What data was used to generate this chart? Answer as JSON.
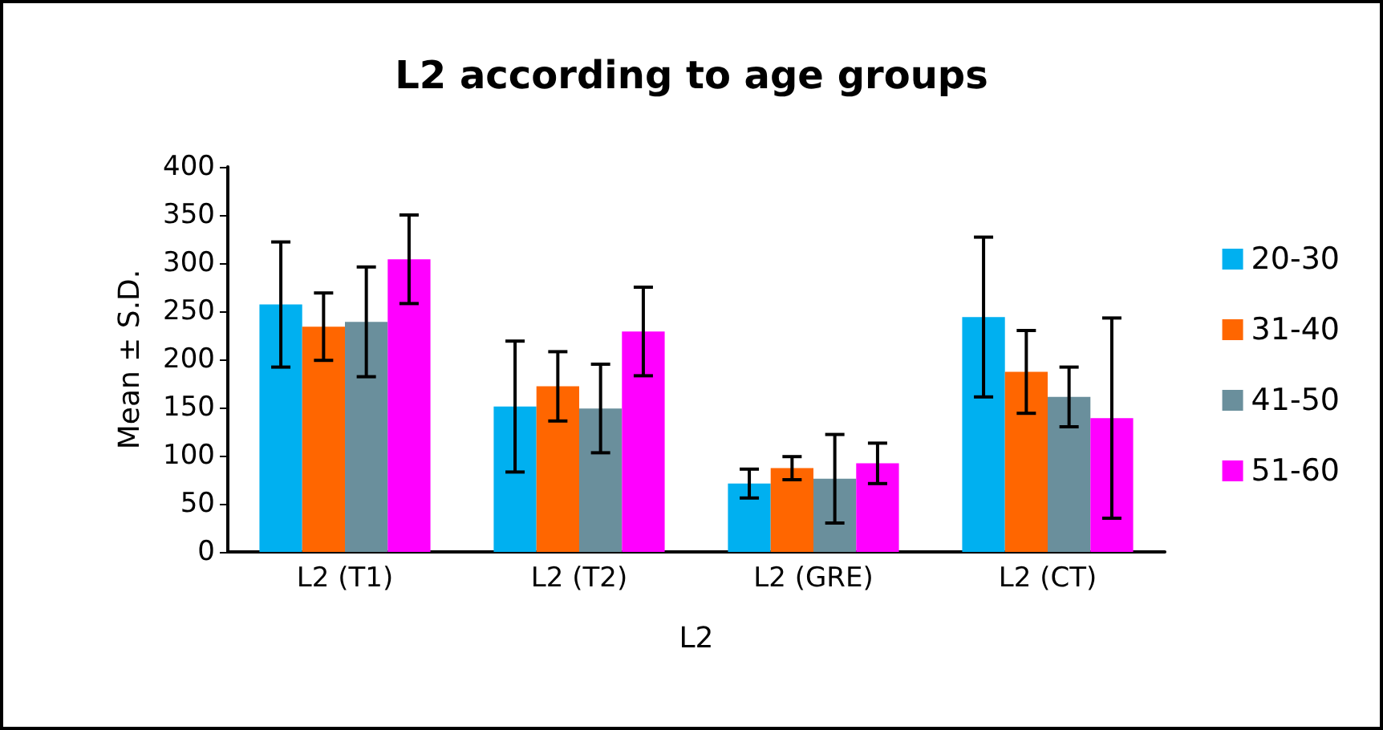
{
  "chart_data": {
    "type": "bar",
    "title": "L2 according to age groups",
    "xlabel": "L2",
    "ylabel": "Mean ± S.D.",
    "categories": [
      "L2 (T1)",
      "L2 (T2)",
      "L2 (GRE)",
      "L2 (CT)"
    ],
    "series": [
      {
        "name": "20-30",
        "color": "#00b0f0",
        "values": [
          257,
          151,
          71,
          244
        ],
        "errors": [
          65,
          68,
          15,
          83
        ]
      },
      {
        "name": "31-40",
        "color": "#ff6600",
        "values": [
          234,
          172,
          87,
          187
        ],
        "errors": [
          35,
          36,
          12,
          43
        ]
      },
      {
        "name": "41-50",
        "color": "#6a8f9c",
        "values": [
          239,
          149,
          76,
          161
        ],
        "errors": [
          57,
          46,
          46,
          31
        ]
      },
      {
        "name": "51-60",
        "color": "#ff00ff",
        "values": [
          304,
          229,
          92,
          139
        ],
        "errors": [
          46,
          46,
          21,
          104
        ]
      }
    ],
    "ylim": [
      0,
      400
    ],
    "yticks": [
      0,
      50,
      100,
      150,
      200,
      250,
      300,
      350,
      400
    ],
    "grid": false,
    "legend": "right"
  }
}
